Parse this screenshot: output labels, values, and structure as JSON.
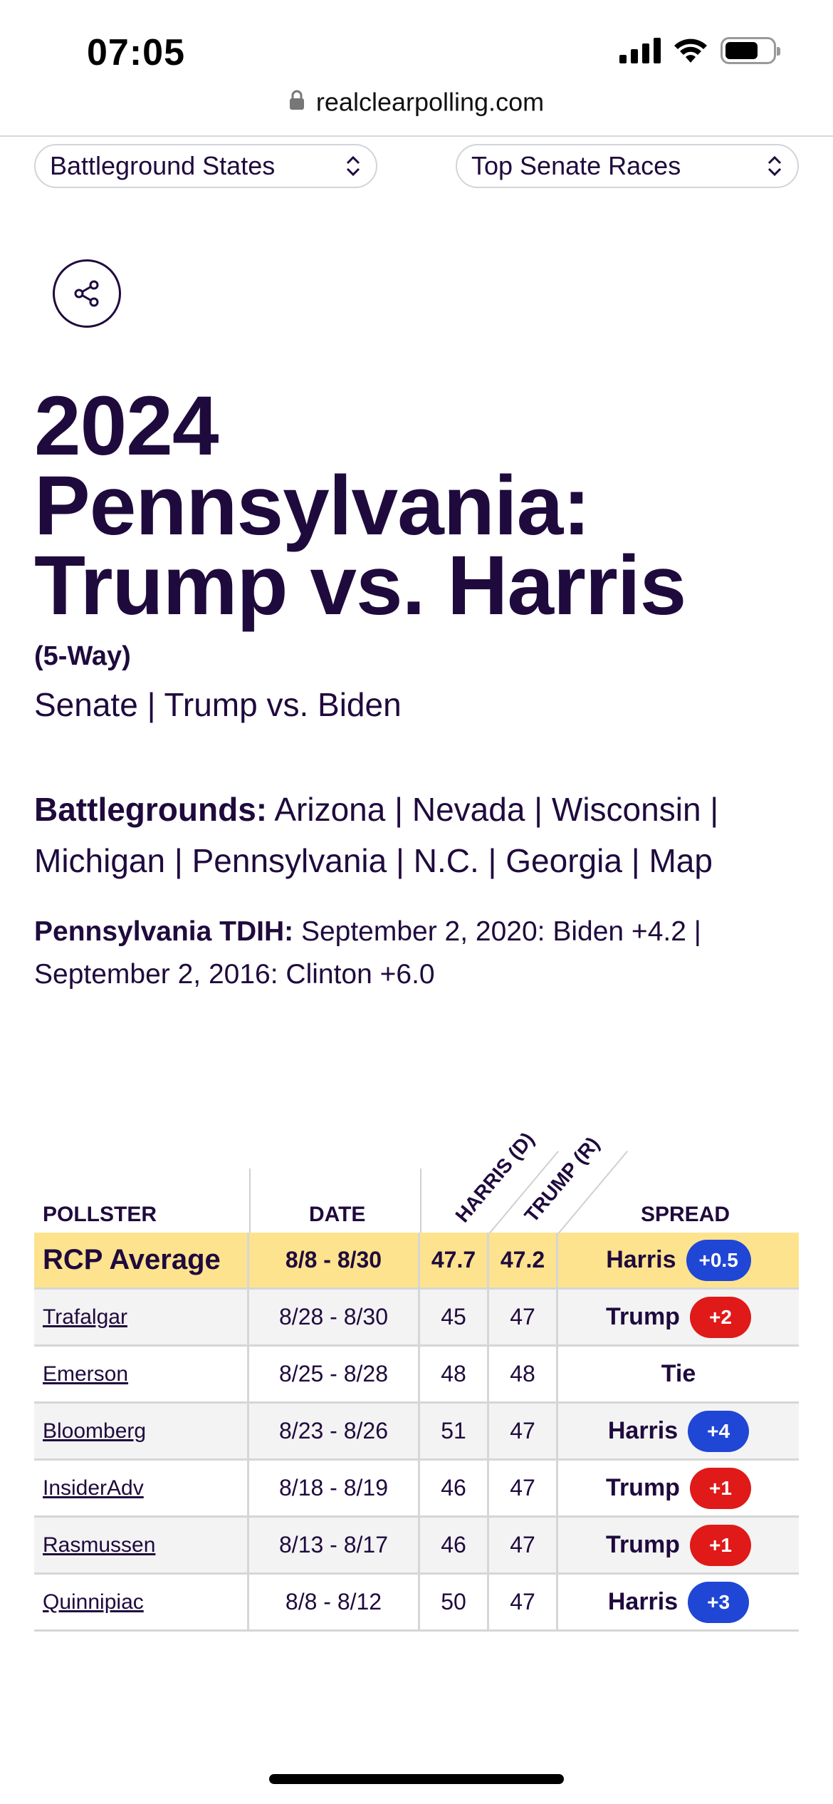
{
  "status_bar": {
    "time": "07:05"
  },
  "browser": {
    "url": "realclearpolling.com"
  },
  "selects": {
    "left": "Battleground States",
    "right": "Top Senate Races"
  },
  "title": {
    "line1": "2024",
    "line2": "Pennsylvania:",
    "line3": "Trump vs. Harris",
    "subtitle": "(5-Way)"
  },
  "related": {
    "senate": "Senate",
    "separator": "|",
    "matchup": "Trump vs. Biden"
  },
  "battlegrounds": {
    "label": "Battlegrounds:",
    "items": [
      "Arizona",
      "Nevada",
      "Wisconsin",
      "Michigan",
      "Pennsylvania",
      "N.C.",
      "Georgia",
      "Map"
    ]
  },
  "tdih": {
    "label": "Pennsylvania TDIH:",
    "entry1": "September 2, 2020: Biden +4.2",
    "entry2": "September 2, 2016: Clinton +6.0"
  },
  "table": {
    "headers": {
      "pollster": "POLLSTER",
      "date": "DATE",
      "harris": "HARRIS (D)",
      "trump": "TRUMP (R)",
      "spread": "SPREAD"
    },
    "average": {
      "pollster": "RCP Average",
      "date": "8/8 - 8/30",
      "harris": "47.7",
      "trump": "47.2",
      "leader": "Harris",
      "margin": "+0.5",
      "party": "D"
    },
    "rows": [
      {
        "pollster": "Trafalgar",
        "date": "8/28 - 8/30",
        "harris": "45",
        "trump": "47",
        "leader": "Trump",
        "margin": "+2",
        "party": "R"
      },
      {
        "pollster": "Emerson",
        "date": "8/25 - 8/28",
        "harris": "48",
        "trump": "48",
        "leader": "Tie",
        "margin": "",
        "party": ""
      },
      {
        "pollster": "Bloomberg",
        "date": "8/23 - 8/26",
        "harris": "51",
        "trump": "47",
        "leader": "Harris",
        "margin": "+4",
        "party": "D"
      },
      {
        "pollster": "InsiderAdv",
        "date": "8/18 - 8/19",
        "harris": "46",
        "trump": "47",
        "leader": "Trump",
        "margin": "+1",
        "party": "R"
      },
      {
        "pollster": "Rasmussen",
        "date": "8/13 - 8/17",
        "harris": "46",
        "trump": "47",
        "leader": "Trump",
        "margin": "+1",
        "party": "R"
      },
      {
        "pollster": "Quinnipiac",
        "date": "8/8 - 8/12",
        "harris": "50",
        "trump": "47",
        "leader": "Harris",
        "margin": "+3",
        "party": "D"
      }
    ]
  },
  "colors": {
    "dem": "#2046d6",
    "rep": "#e01919",
    "average_bg": "#fde38e",
    "text": "#1f0a3d"
  },
  "icons": {
    "lock": "lock-icon",
    "share": "share-icon",
    "select_chevron": "chevron-updown-icon"
  }
}
